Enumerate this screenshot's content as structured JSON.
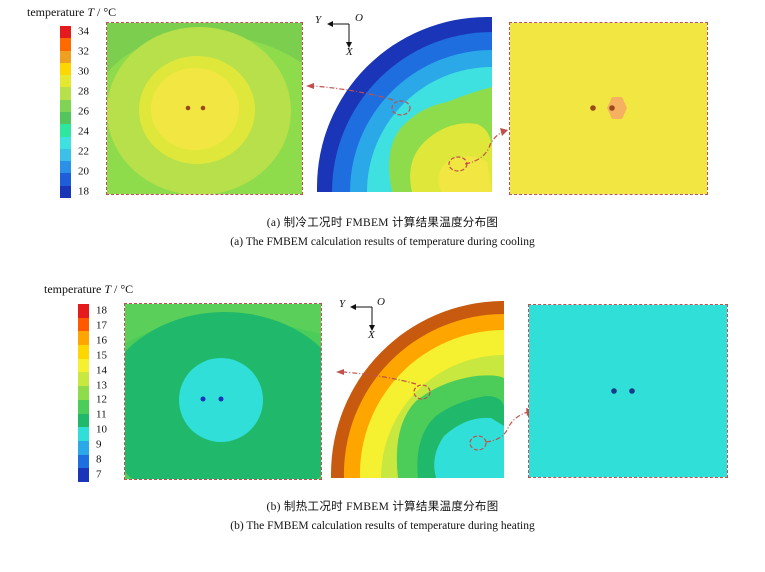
{
  "panel_a": {
    "legend_title": "temperature",
    "legend_symbol": "T",
    "legend_unit": "/ °C",
    "ticks": [
      "34",
      "32",
      "30",
      "28",
      "26",
      "24",
      "22",
      "20",
      "18"
    ],
    "colors": [
      "#e41a1c",
      "#ff6a00",
      "#f0a020",
      "#ffd700",
      "#e5e830",
      "#b8e04a",
      "#7fd454",
      "#52c65c",
      "#2ee6a0",
      "#3fe0e0",
      "#3cc0e8",
      "#2a90e8",
      "#1e5ed8",
      "#1a35b8"
    ],
    "axis_y": "Y",
    "axis_o": "O",
    "axis_x": "X",
    "caption_cn": "(a) 制冷工况时 FMBEM 计算结果温度分布图",
    "caption_en": "(a) The FMBEM calculation results of temperature during cooling"
  },
  "panel_b": {
    "legend_title": "temperature",
    "legend_symbol": "T",
    "legend_unit": "/ °C",
    "ticks": [
      "18",
      "17",
      "16",
      "15",
      "14",
      "13",
      "12",
      "11",
      "10",
      "9",
      "8",
      "7"
    ],
    "colors": [
      "#e41a1c",
      "#ff5a00",
      "#ffa500",
      "#ffd700",
      "#f5f030",
      "#c8e840",
      "#8edc4c",
      "#4ccc58",
      "#20b86a",
      "#30e0d8",
      "#2aa8e8",
      "#1e6ee0",
      "#1a35b8"
    ],
    "axis_y": "Y",
    "axis_o": "O",
    "axis_x": "X",
    "caption_cn": "(b) 制热工况时 FMBEM 计算结果温度分布图",
    "caption_en": "(b) The FMBEM calculation results of temperature during heating"
  }
}
